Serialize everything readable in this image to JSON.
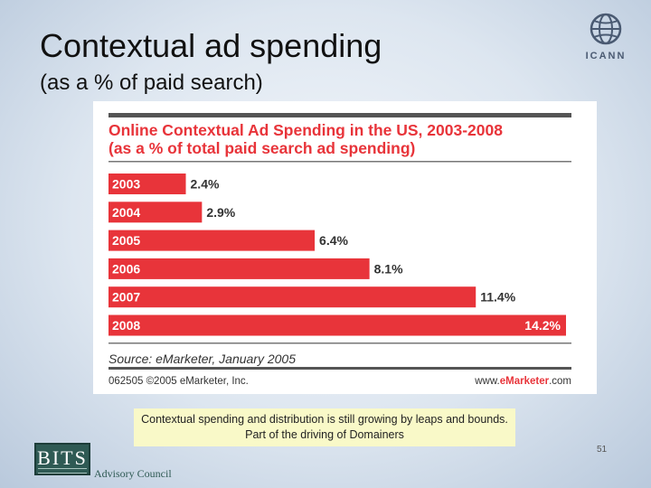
{
  "slide": {
    "title": "Contextual ad spending",
    "subtitle": "(as a % of paid search)",
    "logo_text": "ICANN",
    "caption_line1": "Contextual spending and distribution is still growing by leaps and bounds.",
    "caption_line2": "Part of the driving of Domainers",
    "page_number": "51",
    "footer_logo_text": "BITS",
    "footer_org": "Advisory Council"
  },
  "chart_data": {
    "type": "bar",
    "orientation": "horizontal",
    "title": "Online Contextual Ad Spending in the US, 2003-2008",
    "subtitle": "(as a % of total paid search ad spending)",
    "categories": [
      "2003",
      "2004",
      "2005",
      "2006",
      "2007",
      "2008"
    ],
    "values": [
      2.4,
      2.9,
      6.4,
      8.1,
      11.4,
      14.2
    ],
    "value_labels": [
      "2.4%",
      "2.9%",
      "6.4%",
      "8.1%",
      "11.4%",
      "14.2%"
    ],
    "xlim": [
      0,
      14.2
    ],
    "grid": false,
    "source": "Source: eMarketer, January 2005",
    "footer_left": "062505 ©2005 eMarketer, Inc.",
    "footer_right_prefix": "www.",
    "footer_right_brand": "eMarketer",
    "footer_right_suffix": ".com",
    "bar_color": "#e8343a",
    "title_color": "#e8343a"
  }
}
